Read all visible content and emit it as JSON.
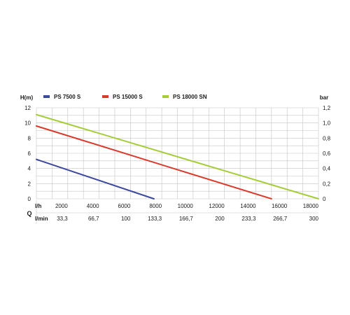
{
  "chart_data": {
    "type": "line",
    "y_left_label": "H(m)",
    "y_right_label": "bar",
    "q_label": "Q",
    "row1_label": "l/h",
    "row2_label": "l/min",
    "xlim": [
      0,
      18000
    ],
    "ylim": [
      0,
      12
    ],
    "y_ticks": [
      "0",
      "2",
      "4",
      "6",
      "8",
      "10",
      "12"
    ],
    "y_right_ticks": [
      "0",
      "0,2",
      "0,4",
      "0,6",
      "0,8",
      "1,0",
      "1,2"
    ],
    "x_ticks_lh": [
      "2000",
      "4000",
      "6000",
      "8000",
      "10000",
      "12000",
      "14000",
      "16000",
      "18000"
    ],
    "x_ticks_lmin": [
      "33,3",
      "66,7",
      "100",
      "133,3",
      "166,7",
      "200",
      "233,3",
      "266,7",
      "300"
    ],
    "grid": true,
    "legend_position": "top",
    "series": [
      {
        "name": "PS 7500 S",
        "color": "#3d4a9c",
        "x": [
          0,
          7500
        ],
        "y": [
          5.2,
          0
        ]
      },
      {
        "name": "PS 15000 S",
        "color": "#d93a2b",
        "x": [
          0,
          15000
        ],
        "y": [
          9.6,
          0
        ]
      },
      {
        "name": "PS 18000 SN",
        "color": "#a6cc3a",
        "x": [
          0,
          18000
        ],
        "y": [
          11.1,
          0
        ]
      }
    ]
  }
}
